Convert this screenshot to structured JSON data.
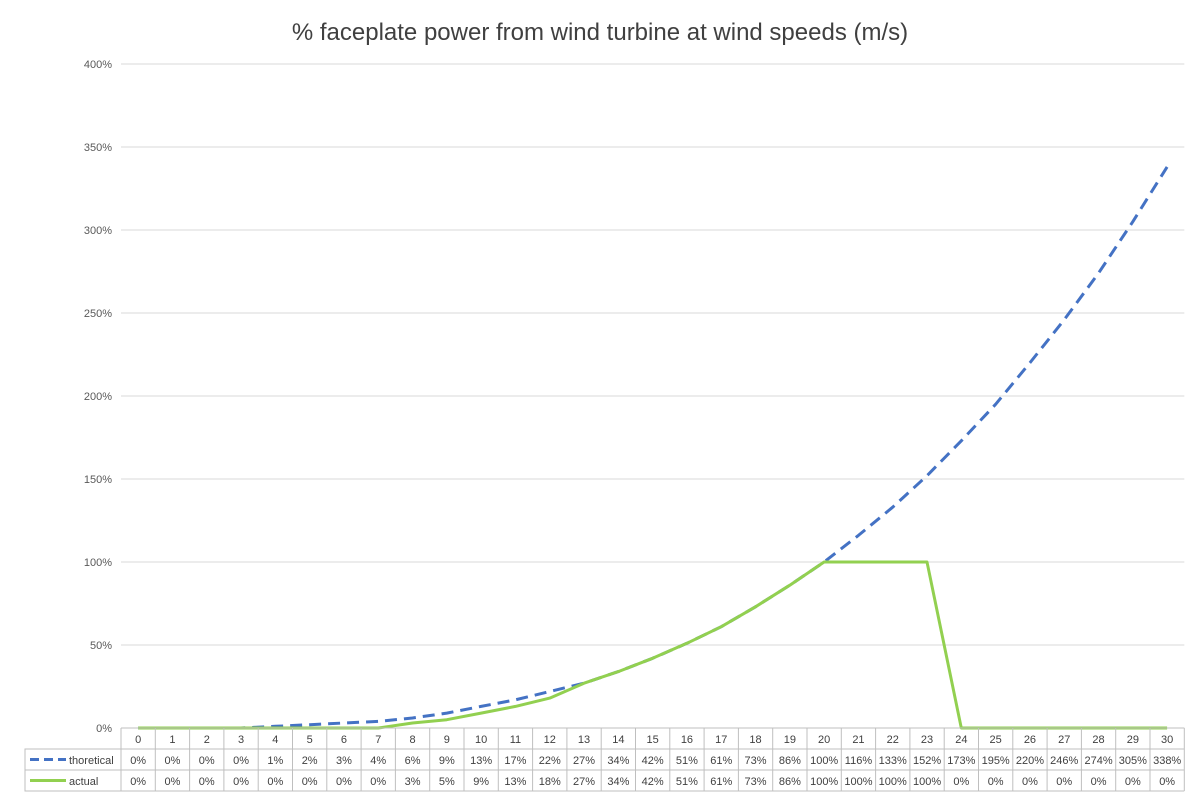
{
  "chart_data": {
    "type": "line",
    "title": "% faceplate power from wind turbine at wind speeds (m/s)",
    "xlabel": "",
    "ylabel": "",
    "x": [
      0,
      1,
      2,
      3,
      4,
      5,
      6,
      7,
      8,
      9,
      10,
      11,
      12,
      13,
      14,
      15,
      16,
      17,
      18,
      19,
      20,
      21,
      22,
      23,
      24,
      25,
      26,
      27,
      28,
      29,
      30
    ],
    "yticks": [
      "0%",
      "50%",
      "100%",
      "150%",
      "200%",
      "250%",
      "300%",
      "350%",
      "400%"
    ],
    "ylim": [
      0,
      400
    ],
    "grid": true,
    "legend": "data-table-left",
    "series": [
      {
        "name": "thoretical",
        "color": "#4472c4",
        "style": "dashed",
        "values": [
          0,
          0,
          0,
          0,
          1,
          2,
          3,
          4,
          6,
          9,
          13,
          17,
          22,
          27,
          34,
          42,
          51,
          61,
          73,
          86,
          100,
          116,
          133,
          152,
          173,
          195,
          220,
          246,
          274,
          305,
          338
        ],
        "labels": [
          "0%",
          "0%",
          "0%",
          "0%",
          "1%",
          "2%",
          "3%",
          "4%",
          "6%",
          "9%",
          "13%",
          "17%",
          "22%",
          "27%",
          "34%",
          "42%",
          "51%",
          "61%",
          "73%",
          "86%",
          "100%",
          "116%",
          "133%",
          "152%",
          "173%",
          "195%",
          "220%",
          "246%",
          "274%",
          "305%",
          "338%"
        ]
      },
      {
        "name": "actual",
        "color": "#92d050",
        "style": "solid",
        "values": [
          0,
          0,
          0,
          0,
          0,
          0,
          0,
          0,
          3,
          5,
          9,
          13,
          18,
          27,
          34,
          42,
          51,
          61,
          73,
          86,
          100,
          100,
          100,
          100,
          0,
          0,
          0,
          0,
          0,
          0,
          0
        ],
        "labels": [
          "0%",
          "0%",
          "0%",
          "0%",
          "0%",
          "0%",
          "0%",
          "0%",
          "3%",
          "5%",
          "9%",
          "13%",
          "18%",
          "27%",
          "34%",
          "42%",
          "51%",
          "61%",
          "73%",
          "86%",
          "100%",
          "100%",
          "100%",
          "100%",
          "0%",
          "0%",
          "0%",
          "0%",
          "0%",
          "0%",
          "0%"
        ]
      }
    ]
  }
}
